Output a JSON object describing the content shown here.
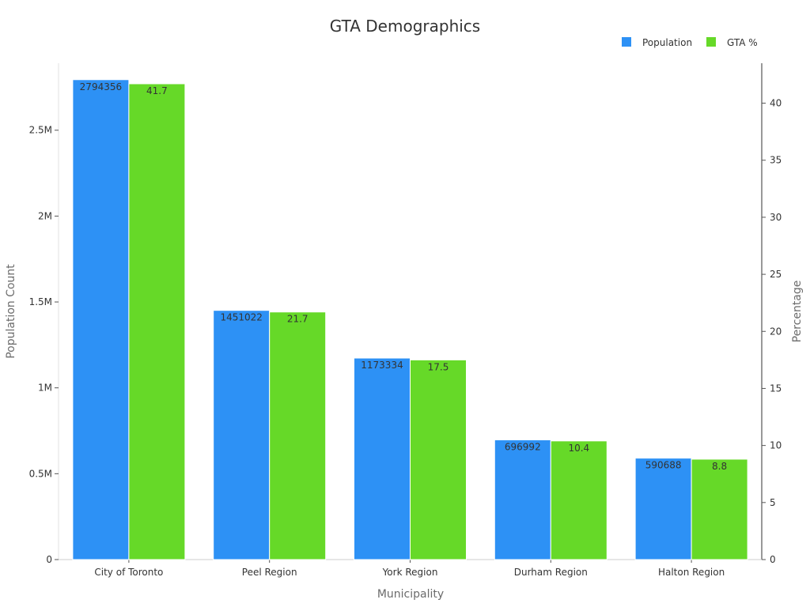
{
  "chart_data": {
    "type": "bar",
    "title": "GTA Demographics",
    "xlabel": "Municipality",
    "ylabel_left": "Population Count",
    "ylabel_right": "Percentage",
    "categories": [
      "City of Toronto",
      "Peel Region",
      "York Region",
      "Durham Region",
      "Halton Region"
    ],
    "series": [
      {
        "name": "Population",
        "axis": "left",
        "color": "#2d91f5",
        "values": [
          2794356,
          1451022,
          1173334,
          696992,
          590688
        ],
        "labels": [
          "2794356",
          "1451022",
          "1173334",
          "696992",
          "590688"
        ]
      },
      {
        "name": "GTA %",
        "axis": "right",
        "color": "#66d928",
        "values": [
          41.7,
          21.7,
          17.5,
          10.4,
          8.8
        ],
        "labels": [
          "41.7",
          "21.7",
          "17.5",
          "10.4",
          "8.8"
        ]
      }
    ],
    "y_left": {
      "ylim": [
        0,
        2890000
      ],
      "ticks": [
        0,
        500000,
        1000000,
        1500000,
        2000000,
        2500000
      ],
      "tick_labels": [
        "0",
        "0.5M",
        "1M",
        "1.5M",
        "2M",
        "2.5M"
      ]
    },
    "y_right": {
      "ylim": [
        0,
        43.5
      ],
      "ticks": [
        0,
        5,
        10,
        15,
        20,
        25,
        30,
        35,
        40
      ],
      "tick_labels": [
        "0",
        "5",
        "10",
        "15",
        "20",
        "25",
        "30",
        "35",
        "40"
      ]
    },
    "grid": false,
    "legend": "top-right"
  }
}
